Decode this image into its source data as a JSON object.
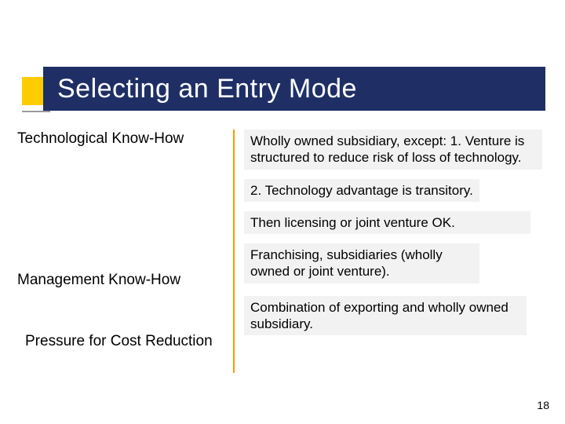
{
  "title": "Selecting an Entry Mode",
  "colors": {
    "accent_box": "#ffcc00",
    "title_bar": "#1f2f66",
    "title_text": "#ffffff",
    "divider": "#ff9900",
    "block_bg": "#f2f2f2",
    "text": "#000000",
    "accent_line": "#999999"
  },
  "typography": {
    "title_fontsize": 34,
    "heading_fontsize": 19,
    "body_fontsize": 17,
    "pagenum_fontsize": 14,
    "font_family": "Verdana"
  },
  "left": {
    "h1": "Technological Know-How",
    "h2": "Management Know-How",
    "h3": "Pressure for Cost Reduction"
  },
  "right": {
    "b1": "Wholly owned subsidiary, except:  1. Venture is structured to reduce risk of loss of technology.",
    "b2": "2. Technology advantage is transitory.",
    "b3": "Then licensing or joint venture OK.",
    "b4": "Franchising, subsidiaries (wholly owned or joint venture).",
    "b5": "Combination of exporting and wholly owned subsidiary."
  },
  "page_number": "18"
}
